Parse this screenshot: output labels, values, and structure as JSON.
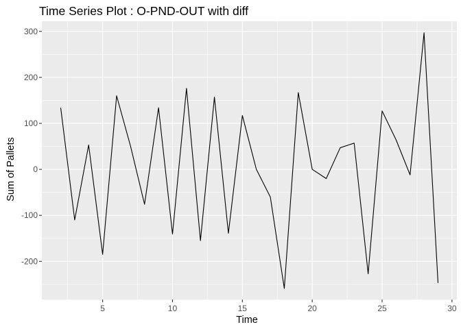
{
  "chart_data": {
    "type": "line",
    "title": "Time Series Plot : O-PND-OUT with diff",
    "xlabel": "Time",
    "ylabel": "Sum of Pallets",
    "xlim": [
      0.65,
      30.35
    ],
    "ylim": [
      -283,
      322
    ],
    "x_ticks": [
      5,
      10,
      15,
      20,
      25,
      30
    ],
    "y_ticks": [
      -200,
      -100,
      0,
      100,
      200,
      300
    ],
    "x_tick_labels": [
      "5",
      "10",
      "15",
      "20",
      "25",
      "30"
    ],
    "y_tick_labels": [
      "-200",
      "-100",
      "0",
      "100",
      "200",
      "300"
    ],
    "grid": true,
    "legend": "none",
    "panel_color": "#ebebeb",
    "grid_color": "#ffffff",
    "line_color": "#000000",
    "series": [
      {
        "x": [
          2,
          3,
          4,
          5,
          6,
          7,
          8,
          9,
          10,
          11,
          12,
          13,
          14,
          15,
          16,
          17,
          18,
          19,
          20,
          21,
          22,
          23,
          24,
          25,
          26,
          27,
          28,
          29
        ],
        "values": [
          134,
          -110,
          53,
          -185,
          160,
          50,
          -76,
          134,
          -141,
          176,
          -155,
          157,
          -139,
          117,
          0,
          -60,
          -259,
          167,
          0,
          -20,
          47,
          57,
          -227,
          127,
          64,
          -12,
          297,
          -247
        ]
      }
    ]
  }
}
